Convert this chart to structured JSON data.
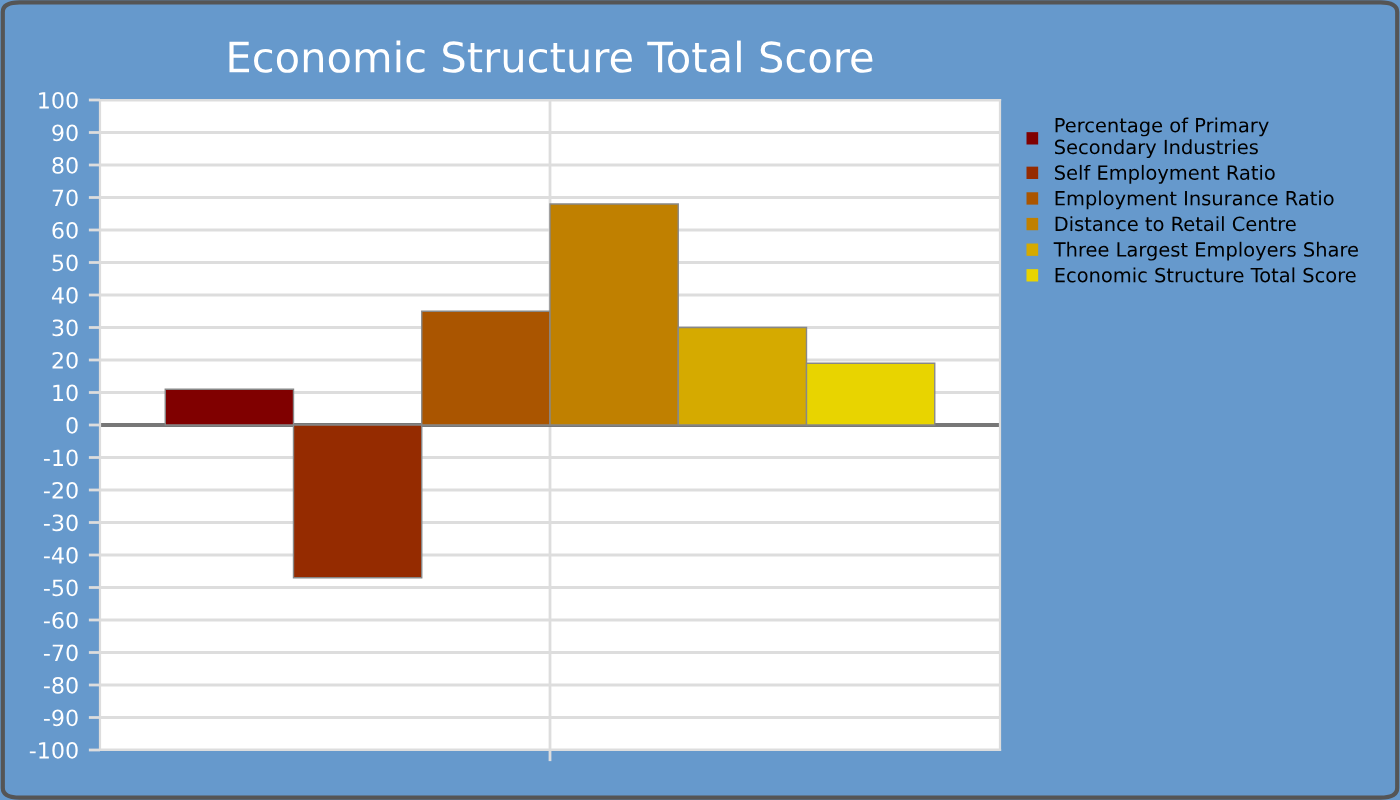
{
  "chart_data": {
    "type": "bar",
    "title": "Economic Structure Total Score",
    "categories": [
      null
    ],
    "series": [
      {
        "name": "Percentage of Primary\nSecondary Industries",
        "color": "#800000",
        "values": [
          11
        ]
      },
      {
        "name": "Self Employment Ratio",
        "color": "#952b00",
        "values": [
          -47
        ]
      },
      {
        "name": "Employment Insurance Ratio",
        "color": "#aa5500",
        "values": [
          35
        ]
      },
      {
        "name": "Distance to Retail Centre",
        "color": "#c08000",
        "values": [
          68
        ]
      },
      {
        "name": "Three Largest Employers Share",
        "color": "#d5aa00",
        "values": [
          30
        ]
      },
      {
        "name": "Economic Structure Total Score",
        "color": "#e8d400",
        "values": [
          19
        ]
      }
    ],
    "ylim": [
      -100,
      100
    ],
    "yticks": [
      -100,
      -90,
      -80,
      -70,
      -60,
      -50,
      -40,
      -30,
      -20,
      -10,
      0,
      10,
      20,
      30,
      40,
      50,
      60,
      70,
      80,
      90,
      100
    ],
    "grid": true,
    "legend": "top right"
  }
}
